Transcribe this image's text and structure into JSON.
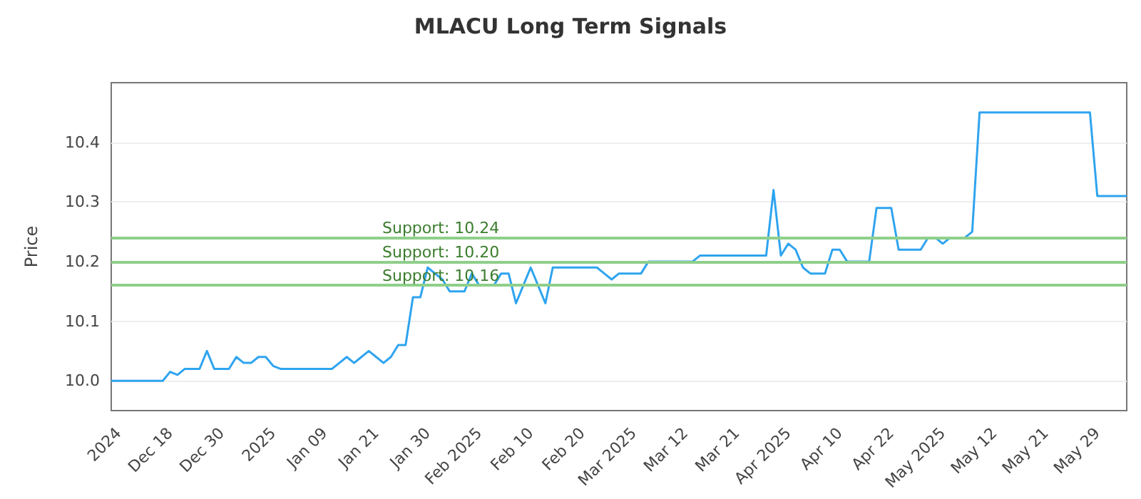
{
  "chart_data": {
    "type": "line",
    "title": "MLACU Long Term Signals",
    "ylabel": "Price",
    "categories": [
      null,
      "2024",
      null,
      null,
      null,
      null,
      null,
      null,
      "Dec 18",
      null,
      null,
      null,
      null,
      null,
      null,
      "Dec 30",
      null,
      null,
      null,
      null,
      null,
      null,
      "2025",
      null,
      null,
      null,
      null,
      null,
      null,
      "Jan 09",
      null,
      null,
      null,
      null,
      null,
      null,
      "Jan 21",
      null,
      null,
      null,
      null,
      null,
      null,
      "Jan 30",
      null,
      null,
      null,
      null,
      null,
      null,
      "Feb 2025",
      null,
      null,
      null,
      null,
      null,
      null,
      "Feb 10",
      null,
      null,
      null,
      null,
      null,
      null,
      "Feb 20",
      null,
      null,
      null,
      null,
      null,
      null,
      "Mar 2025",
      null,
      null,
      null,
      null,
      null,
      null,
      "Mar 12",
      null,
      null,
      null,
      null,
      null,
      null,
      "Mar 21",
      null,
      null,
      null,
      null,
      null,
      null,
      "Apr 2025",
      null,
      null,
      null,
      null,
      null,
      null,
      "Apr 10",
      null,
      null,
      null,
      null,
      null,
      null,
      "Apr 22",
      null,
      null,
      null,
      null,
      null,
      null,
      "May 2025",
      null,
      null,
      null,
      null,
      null,
      null,
      "May 12",
      null,
      null,
      null,
      null,
      null,
      null,
      "May 21",
      null,
      null,
      null,
      null,
      null,
      null,
      "May 29",
      null,
      null,
      null,
      null
    ],
    "series": [
      {
        "color": "#2fa4ef",
        "values": [
          10.0,
          10.0,
          10.0,
          10.0,
          10.0,
          10.0,
          10.0,
          10.0,
          10.015,
          10.01,
          10.02,
          10.02,
          10.02,
          10.05,
          10.02,
          10.02,
          10.02,
          10.04,
          10.03,
          10.03,
          10.04,
          10.04,
          10.025,
          10.02,
          10.02,
          10.02,
          10.02,
          10.02,
          10.02,
          10.02,
          10.02,
          10.03,
          10.04,
          10.03,
          10.04,
          10.05,
          10.04,
          10.03,
          10.04,
          10.06,
          10.06,
          10.14,
          10.14,
          10.19,
          10.18,
          10.17,
          10.15,
          10.15,
          10.15,
          10.18,
          10.16,
          10.16,
          10.16,
          10.18,
          10.18,
          10.13,
          10.16,
          10.19,
          10.16,
          10.13,
          10.19,
          10.19,
          10.19,
          10.19,
          10.19,
          10.19,
          10.19,
          10.18,
          10.17,
          10.18,
          10.18,
          10.18,
          10.18,
          10.2,
          10.2,
          10.2,
          10.2,
          10.2,
          10.2,
          10.2,
          10.21,
          10.21,
          10.21,
          10.21,
          10.21,
          10.21,
          10.21,
          10.21,
          10.21,
          10.21,
          10.32,
          10.21,
          10.23,
          10.22,
          10.19,
          10.18,
          10.18,
          10.18,
          10.22,
          10.22,
          10.2,
          10.2,
          10.2,
          10.2,
          10.29,
          10.29,
          10.29,
          10.22,
          10.22,
          10.22,
          10.22,
          10.24,
          10.24,
          10.23,
          10.24,
          10.24,
          10.24,
          10.25,
          10.45,
          10.45,
          10.45,
          10.45,
          10.45,
          10.45,
          10.45,
          10.45,
          10.45,
          10.45,
          10.45,
          10.45,
          10.45,
          10.45,
          10.45,
          10.45,
          10.31,
          10.31,
          10.31,
          10.31,
          10.31
        ]
      }
    ],
    "ylim": [
      9.95,
      10.5
    ],
    "yticks": [
      {
        "value": 10.0,
        "label": "10.0"
      },
      {
        "value": 10.1,
        "label": "10.1"
      },
      {
        "value": 10.2,
        "label": "10.2"
      },
      {
        "value": 10.3,
        "label": "10.3"
      },
      {
        "value": 10.4,
        "label": "10.4"
      }
    ],
    "ref_lines": [
      {
        "axis": "y",
        "value": 10.24,
        "label": "Support: 10.24",
        "color": "#8fcf8a"
      },
      {
        "axis": "y",
        "value": 10.2,
        "label": "Support: 10.20",
        "color": "#8fcf8a"
      },
      {
        "axis": "y",
        "value": 10.16,
        "label": "Support: 10.16",
        "color": "#8fcf8a"
      }
    ],
    "grid": "y",
    "marker": "none",
    "line_style": "solid"
  }
}
